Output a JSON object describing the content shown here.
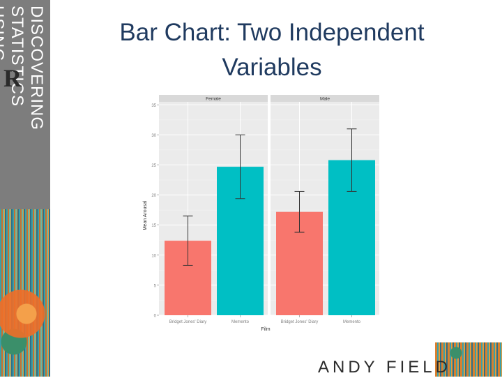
{
  "slide": {
    "title": "Bar Chart: Two Independent Variables",
    "side_title_line1": "DISCOVERING STATISTICS",
    "side_title_line2": "USING",
    "logo_letter": "R",
    "author": "ANDY FIELD"
  },
  "chart_data": {
    "type": "bar",
    "panels": [
      "Female",
      "Male"
    ],
    "categories": [
      "Bridget Jones' Diary",
      "Memento"
    ],
    "series": [
      {
        "panel": "Female",
        "values": [
          12.4,
          24.7
        ],
        "error_low": [
          8.3,
          19.4
        ],
        "error_high": [
          16.5,
          30.0
        ]
      },
      {
        "panel": "Male",
        "values": [
          17.2,
          25.8
        ],
        "error_low": [
          13.8,
          20.6
        ],
        "error_high": [
          20.6,
          31.0
        ]
      }
    ],
    "colors": {
      "Bridget Jones' Diary": "#F8766D",
      "Memento": "#00BFC4"
    },
    "xlabel": "Film",
    "ylabel": "Mean Arousal",
    "yticks": [
      0,
      5,
      10,
      15,
      20,
      25,
      30,
      35
    ],
    "ylim": [
      0,
      35.5
    ],
    "grid": true,
    "panel_background": "#ebebeb",
    "strip_background": "#d9d9d9"
  }
}
